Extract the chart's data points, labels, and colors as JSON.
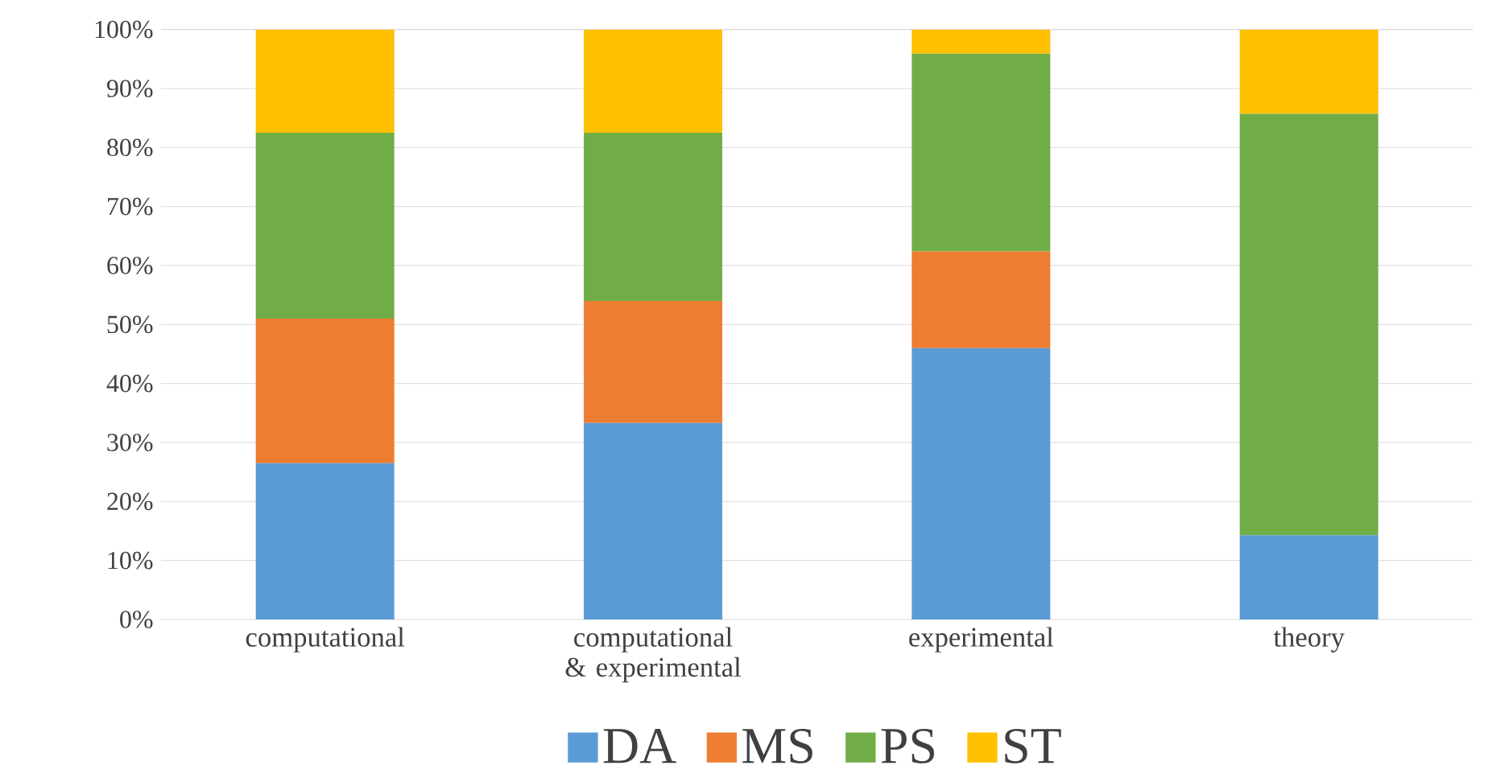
{
  "chart_data": {
    "type": "bar",
    "stacked": true,
    "categories": [
      "computational",
      "computational & experimental",
      "experimental",
      "theory"
    ],
    "series": [
      {
        "name": "DA",
        "color": "#5b9bd5",
        "values": [
          26.5,
          33.3,
          46.0,
          14.3
        ]
      },
      {
        "name": "MS",
        "color": "#ed7d31",
        "values": [
          24.5,
          20.7,
          16.4,
          0
        ]
      },
      {
        "name": "PS",
        "color": "#70ad47",
        "values": [
          31.5,
          28.5,
          33.5,
          71.4
        ]
      },
      {
        "name": "ST",
        "color": "#ffc000",
        "values": [
          17.5,
          17.5,
          4.1,
          14.3
        ]
      }
    ],
    "ylim": [
      0,
      100
    ],
    "yticks": [
      {
        "value": 0,
        "label": "0%"
      },
      {
        "value": 10,
        "label": "10%"
      },
      {
        "value": 20,
        "label": "20%"
      },
      {
        "value": 30,
        "label": "30%"
      },
      {
        "value": 40,
        "label": "40%"
      },
      {
        "value": 50,
        "label": "50%"
      },
      {
        "value": 60,
        "label": "60%"
      },
      {
        "value": 70,
        "label": "70%"
      },
      {
        "value": 80,
        "label": "80%"
      },
      {
        "value": 90,
        "label": "90%"
      },
      {
        "value": 100,
        "label": "100%"
      }
    ],
    "grid": "y",
    "legend": "bottom"
  }
}
